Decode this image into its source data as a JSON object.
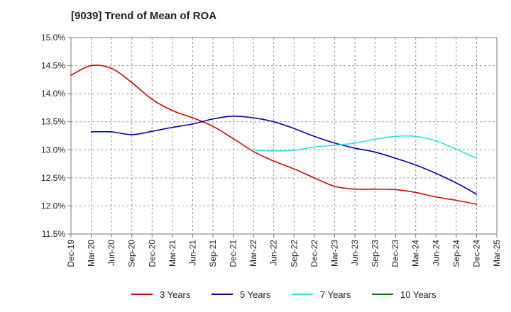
{
  "chart_data": {
    "type": "line",
    "title": "[9039]  Trend of Mean of ROA",
    "xlabel": "",
    "ylabel": "",
    "x_ticks": [
      "Dec-19",
      "Mar-20",
      "Jun-20",
      "Sep-20",
      "Dec-20",
      "Mar-21",
      "Jun-21",
      "Sep-21",
      "Dec-21",
      "Mar-22",
      "Jun-22",
      "Sep-22",
      "Dec-22",
      "Mar-23",
      "Jun-23",
      "Sep-23",
      "Dec-23",
      "Mar-24",
      "Jun-24",
      "Sep-24",
      "Dec-24",
      "Mar-25"
    ],
    "y_ticks": [
      "11.5%",
      "12.0%",
      "12.5%",
      "13.0%",
      "13.5%",
      "14.0%",
      "14.5%",
      "15.0%"
    ],
    "ylim": [
      11.5,
      15.0
    ],
    "grid": "dashed",
    "legend_position": "bottom",
    "series": [
      {
        "name": "3 Years",
        "color": "#dd0000",
        "values": [
          14.33,
          14.5,
          14.45,
          14.2,
          13.9,
          13.7,
          13.57,
          13.42,
          13.2,
          12.97,
          12.8,
          12.66,
          12.5,
          12.35,
          12.3,
          12.3,
          12.29,
          12.24,
          12.16,
          12.1,
          12.03,
          null
        ]
      },
      {
        "name": "5 Years",
        "color": "#0000bb",
        "values": [
          null,
          13.32,
          13.32,
          13.27,
          13.33,
          13.4,
          13.46,
          13.55,
          13.6,
          13.57,
          13.5,
          13.38,
          13.24,
          13.12,
          13.03,
          12.96,
          12.85,
          12.73,
          12.58,
          12.41,
          12.21,
          null
        ]
      },
      {
        "name": "7 Years",
        "color": "#22e5e5",
        "values": [
          null,
          null,
          null,
          null,
          null,
          null,
          null,
          null,
          null,
          13.0,
          12.98,
          12.99,
          13.05,
          13.08,
          13.12,
          13.19,
          13.24,
          13.24,
          13.16,
          13.01,
          12.85,
          null
        ]
      },
      {
        "name": "10 Years",
        "color": "#007700",
        "values": [
          null,
          null,
          null,
          null,
          null,
          null,
          null,
          null,
          null,
          null,
          null,
          null,
          null,
          null,
          null,
          null,
          null,
          null,
          null,
          null,
          null,
          null
        ]
      }
    ]
  }
}
